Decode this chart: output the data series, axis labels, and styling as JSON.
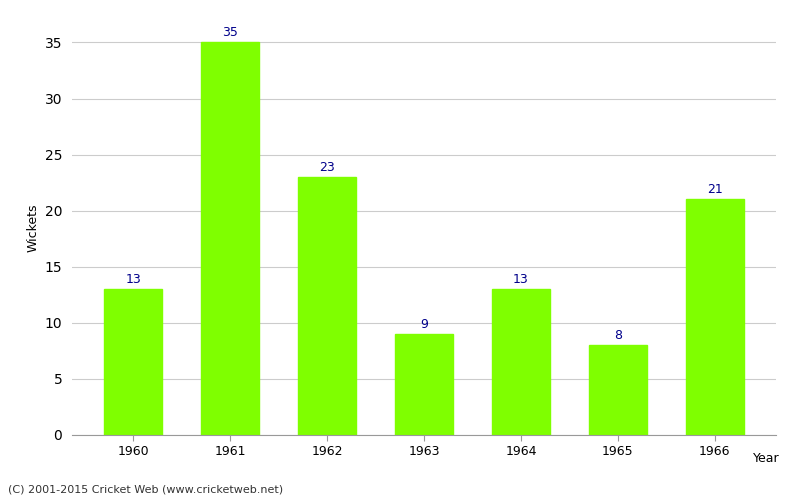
{
  "years": [
    "1960",
    "1961",
    "1962",
    "1963",
    "1964",
    "1965",
    "1966"
  ],
  "values": [
    13,
    35,
    23,
    9,
    13,
    8,
    21
  ],
  "bar_color": "#7FFF00",
  "bar_edge_color": "#7FFF00",
  "label_color": "#00008B",
  "xlabel": "Year",
  "ylabel": "Wickets",
  "ylim": [
    0,
    37
  ],
  "yticks": [
    0,
    5,
    10,
    15,
    20,
    25,
    30,
    35
  ],
  "grid_color": "#cccccc",
  "background_color": "#ffffff",
  "label_fontsize": 9,
  "axis_fontsize": 9,
  "footer": "(C) 2001-2015 Cricket Web (www.cricketweb.net)"
}
